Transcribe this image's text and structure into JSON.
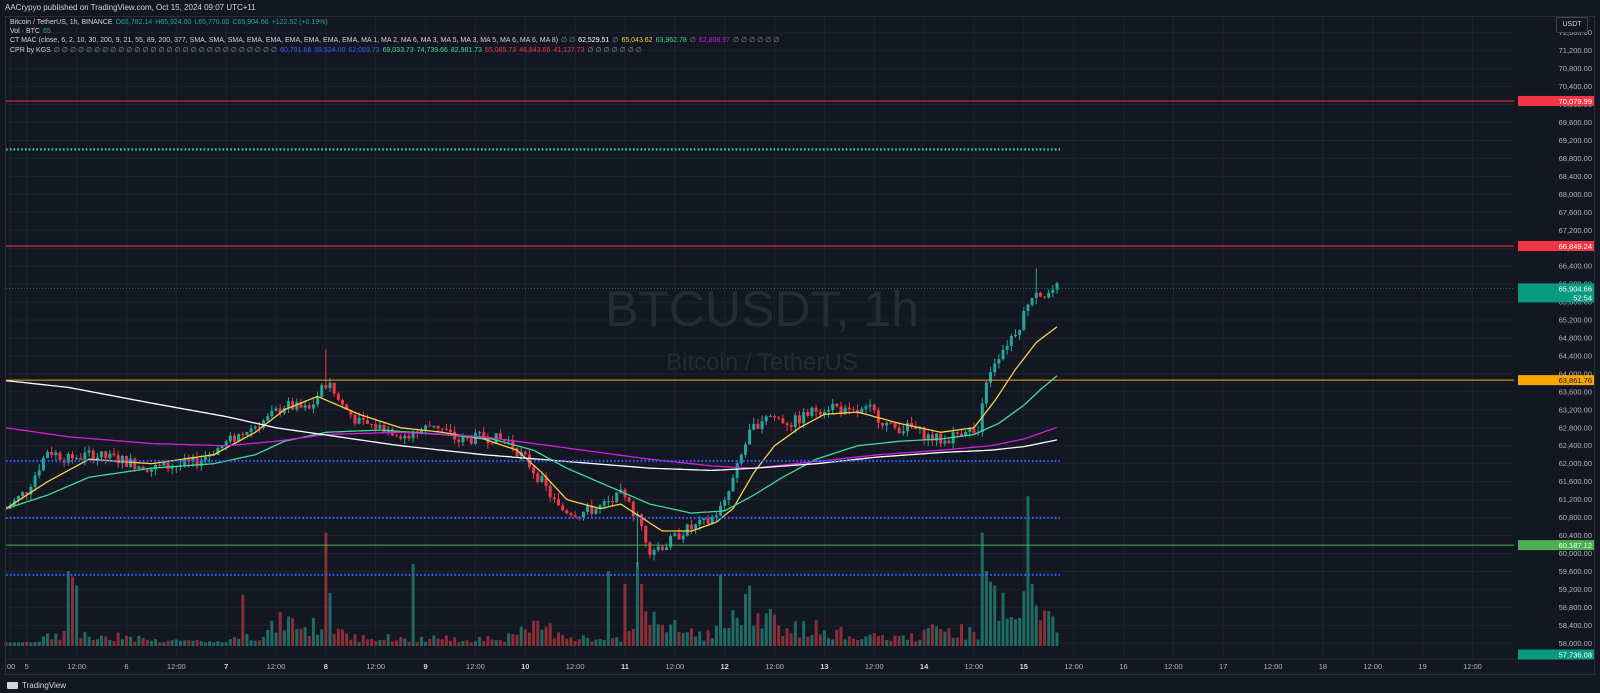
{
  "header": {
    "published": "AACrypyo published on TradingView.com, Oct 15, 2024 09:07 UTC+11"
  },
  "legend": {
    "symbol_line": [
      {
        "text": "Bitcoin / TetherUS, 1h, BINANCE",
        "color": "#d1d4dc"
      },
      {
        "text": "O65,782.14",
        "color": "#26a69a"
      },
      {
        "text": "H65,924.00",
        "color": "#26a69a"
      },
      {
        "text": "L65,770.00",
        "color": "#26a69a"
      },
      {
        "text": "C65,904.66",
        "color": "#26a69a"
      },
      {
        "text": "+122.52 (+0.19%)",
        "color": "#26a69a"
      }
    ],
    "vol_line": [
      {
        "text": "Vol · BTC",
        "color": "#d1d4dc"
      },
      {
        "text": "65",
        "color": "#26a69a"
      }
    ],
    "mac_line": [
      {
        "text": "CT MAC (close, 6, 2, 10, 30, 200, 9, 21, 55, 89, 200, 377, SMA, SMA, SMA, EMA, EMA, EMA, EMA, EMA, EMA, MA 1, MA 2, MA 6, MA 3, MA 5, MA 3, MA 5, MA 6, MA 6, MA 8)",
        "color": "#d1d4dc"
      },
      {
        "text": "∅ ∅",
        "color": "#8c909c"
      },
      {
        "text": "62,529.51",
        "color": "#ffffff"
      },
      {
        "text": "∅",
        "color": "#8c909c"
      },
      {
        "text": "65,043.62",
        "color": "#f7d046"
      },
      {
        "text": "63,962.78",
        "color": "#3ddc97"
      },
      {
        "text": "∅",
        "color": "#8c909c"
      },
      {
        "text": "62,808.97",
        "color": "#d21fdb"
      },
      {
        "text": "∅ ∅ ∅ ∅ ∅ ∅",
        "color": "#8c909c"
      }
    ],
    "cpr_line": [
      {
        "text": "CPR by KGS",
        "color": "#d1d4dc"
      },
      {
        "text": "∅ ∅ ∅ ∅ ∅ ∅ ∅ ∅ ∅ ∅ ∅ ∅ ∅ ∅ ∅ ∅ ∅ ∅ ∅ ∅ ∅ ∅ ∅ ∅ ∅ ∅ ∅ ∅",
        "color": "#8c909c"
      },
      {
        "text": "60,791.66",
        "color": "#2962ff"
      },
      {
        "text": "59,524.00",
        "color": "#2962ff"
      },
      {
        "text": "62,059.73",
        "color": "#2962ff"
      },
      {
        "text": "69,033.73",
        "color": "#3ddc97"
      },
      {
        "text": "74,739.66",
        "color": "#3ddc97"
      },
      {
        "text": "82,981.73",
        "color": "#3ddc97"
      },
      {
        "text": "55,085.73",
        "color": "#f23645"
      },
      {
        "text": "46,843.66",
        "color": "#f23645"
      },
      {
        "text": "41,137.73",
        "color": "#f23645"
      },
      {
        "text": "∅ ∅ ∅ ∅ ∅ ∅ ∅",
        "color": "#8c909c"
      }
    ]
  },
  "currency_button": "USDT",
  "footer": {
    "brand": "TradingView"
  },
  "chart_data": {
    "type": "candlestick",
    "symbol_watermark": "BTCUSDT, 1h",
    "name_watermark": "Bitcoin / TetherUS",
    "y_axis": {
      "ticks": [
        58000,
        58400,
        58800,
        59200,
        59600,
        60000,
        60400,
        60800,
        61200,
        61600,
        62000,
        62400,
        62800,
        63200,
        63600,
        64000,
        64400,
        64800,
        65200,
        65600,
        66000,
        66400,
        66800,
        67200,
        67600,
        68000,
        68400,
        68800,
        69200,
        69600,
        70000,
        70400,
        70800,
        71200,
        71600
      ],
      "tick_labels": [
        "58,000.00",
        "58,400.00",
        "58,800.00",
        "59,200.00",
        "59,600.00",
        "60,000.00",
        "60,400.00",
        "60,800.00",
        "61,200.00",
        "61,600.00",
        "62,000.00",
        "62,400.00",
        "62,800.00",
        "63,200.00",
        "63,600.00",
        "64,000.00",
        "64,400.00",
        "64,800.00",
        "65,200.00",
        "65,600.00",
        "66,000.00",
        "66,400.00",
        "66,800.00",
        "67,200.00",
        "67,600.00",
        "68,000.00",
        "68,400.00",
        "68,800.00",
        "69,200.00",
        "69,600.00",
        "70,000.00",
        "70,400.00",
        "70,800.00",
        "71,200.00",
        "71,600.00"
      ],
      "range": [
        57650,
        71950
      ]
    },
    "x_axis": {
      "labels": [
        {
          "t": -4,
          "label": ":00"
        },
        {
          "t": 0,
          "label": "5"
        },
        {
          "t": 12,
          "label": "12:00"
        },
        {
          "t": 24,
          "label": "6"
        },
        {
          "t": 36,
          "label": "12:00"
        },
        {
          "t": 48,
          "label": "7"
        },
        {
          "t": 60,
          "label": "12:00"
        },
        {
          "t": 72,
          "label": "8"
        },
        {
          "t": 84,
          "label": "12:00"
        },
        {
          "t": 96,
          "label": "9"
        },
        {
          "t": 108,
          "label": "12:00"
        },
        {
          "t": 120,
          "label": "10"
        },
        {
          "t": 132,
          "label": "12:00"
        },
        {
          "t": 144,
          "label": "11"
        },
        {
          "t": 156,
          "label": "12:00"
        },
        {
          "t": 168,
          "label": "12"
        },
        {
          "t": 180,
          "label": "12:00"
        },
        {
          "t": 192,
          "label": "13"
        },
        {
          "t": 204,
          "label": "12:00"
        },
        {
          "t": 216,
          "label": "14"
        },
        {
          "t": 228,
          "label": "12:00"
        },
        {
          "t": 240,
          "label": "15"
        },
        {
          "t": 252,
          "label": "12:00"
        },
        {
          "t": 264,
          "label": "16"
        },
        {
          "t": 276,
          "label": "12:00"
        },
        {
          "t": 288,
          "label": "17"
        },
        {
          "t": 300,
          "label": "12:00"
        },
        {
          "t": 312,
          "label": "18"
        },
        {
          "t": 324,
          "label": "12:00"
        },
        {
          "t": 336,
          "label": "19"
        },
        {
          "t": 348,
          "label": "12:00"
        }
      ],
      "range": [
        -5,
        358
      ],
      "highlight": [
        "7",
        "8",
        "9",
        "10",
        "11",
        "12",
        "13",
        "14",
        "15"
      ]
    },
    "anchors": [
      [
        -5,
        61000,
        58050
      ],
      [
        0,
        61400,
        58100
      ],
      [
        5,
        62300,
        58200
      ],
      [
        10,
        62100,
        58300
      ],
      [
        15,
        62200,
        58200
      ],
      [
        22,
        62100,
        58250
      ],
      [
        30,
        61900,
        58150
      ],
      [
        40,
        62000,
        58150
      ],
      [
        47,
        62400,
        58100
      ],
      [
        52,
        62700,
        58200
      ],
      [
        58,
        63000,
        58300
      ],
      [
        62,
        63300,
        58500
      ],
      [
        68,
        63200,
        58350
      ],
      [
        72,
        63800,
        58500
      ],
      [
        76,
        63300,
        58300
      ],
      [
        80,
        62900,
        58200
      ],
      [
        86,
        62800,
        58200
      ],
      [
        92,
        62600,
        58150
      ],
      [
        98,
        62900,
        58200
      ],
      [
        104,
        62500,
        58150
      ],
      [
        110,
        62600,
        58200
      ],
      [
        116,
        62500,
        58200
      ],
      [
        120,
        62100,
        58300
      ],
      [
        124,
        61600,
        58400
      ],
      [
        128,
        61000,
        58300
      ],
      [
        133,
        60900,
        58200
      ],
      [
        137,
        61000,
        58150
      ],
      [
        140,
        61100,
        58150
      ],
      [
        143,
        61300,
        58200
      ],
      [
        147,
        60800,
        58300
      ],
      [
        150,
        60100,
        58700
      ],
      [
        154,
        60200,
        58400
      ],
      [
        158,
        60500,
        58300
      ],
      [
        164,
        60700,
        58250
      ],
      [
        168,
        61100,
        58400
      ],
      [
        171,
        61900,
        58600
      ],
      [
        174,
        62700,
        58700
      ],
      [
        178,
        63100,
        58600
      ],
      [
        184,
        62900,
        58350
      ],
      [
        190,
        63200,
        58350
      ],
      [
        194,
        63300,
        58300
      ],
      [
        198,
        63100,
        58250
      ],
      [
        203,
        63200,
        58200
      ],
      [
        208,
        62800,
        58200
      ],
      [
        213,
        62800,
        58200
      ],
      [
        217,
        62600,
        58300
      ],
      [
        221,
        62500,
        58350
      ],
      [
        226,
        62800,
        58300
      ],
      [
        229,
        62600,
        58300
      ],
      [
        231,
        63900,
        59200
      ],
      [
        233,
        64300,
        58900
      ],
      [
        236,
        64700,
        58600
      ],
      [
        239,
        65100,
        58500
      ],
      [
        241,
        65600,
        58800
      ],
      [
        243,
        65900,
        59000
      ],
      [
        245,
        65750,
        58500
      ],
      [
        248,
        65900,
        58400
      ]
    ],
    "spikes": {
      "31": {
        "v": 58000
      },
      "72": {
        "v": 58300
      },
      "123": {
        "v": 58300
      },
      "144": {
        "v": 59100
      },
      "147": {
        "v": 58400
      },
      "148": {
        "v": 58200
      },
      "162": {
        "v": 58300
      },
      "172": {
        "v": 58400
      },
      "230": {
        "v": 59500
      },
      "231": {
        "v": 58700
      },
      "232": {
        "v": 58900
      },
      "239": {
        "v": 59100
      },
      "241": {
        "v": 60700
      },
      "242": {
        "v": 58900
      }
    },
    "volume_peaks": {
      "10": 0.41,
      "11": 0.38,
      "12": 0.33,
      "52": 0.28,
      "72": 0.62,
      "73": 0.29,
      "93": 0.45,
      "140": 0.41,
      "144": 0.34,
      "147": 0.46,
      "148": 0.34,
      "167": 0.39,
      "174": 0.33,
      "230": 0.62,
      "231": 0.41,
      "240": 0.3,
      "241": 0.82,
      "242": 0.34
    },
    "moving_averages": [
      {
        "color": "#f7d046",
        "anchors": [
          [
            -5,
            61000
          ],
          [
            5,
            61600
          ],
          [
            15,
            62100
          ],
          [
            30,
            62000
          ],
          [
            45,
            62200
          ],
          [
            55,
            62700
          ],
          [
            62,
            63200
          ],
          [
            70,
            63500
          ],
          [
            80,
            63100
          ],
          [
            90,
            62800
          ],
          [
            100,
            62700
          ],
          [
            110,
            62550
          ],
          [
            118,
            62300
          ],
          [
            124,
            61800
          ],
          [
            130,
            61200
          ],
          [
            138,
            61000
          ],
          [
            143,
            61100
          ],
          [
            148,
            60800
          ],
          [
            153,
            60500
          ],
          [
            160,
            60500
          ],
          [
            166,
            60700
          ],
          [
            170,
            61000
          ],
          [
            175,
            61800
          ],
          [
            180,
            62400
          ],
          [
            186,
            62800
          ],
          [
            192,
            63100
          ],
          [
            200,
            63150
          ],
          [
            210,
            62900
          ],
          [
            220,
            62700
          ],
          [
            228,
            62800
          ],
          [
            233,
            63400
          ],
          [
            238,
            64100
          ],
          [
            243,
            64700
          ],
          [
            248,
            65050
          ]
        ]
      },
      {
        "color": "#3ddc97",
        "anchors": [
          [
            -5,
            61000
          ],
          [
            5,
            61300
          ],
          [
            15,
            61700
          ],
          [
            30,
            61900
          ],
          [
            45,
            62000
          ],
          [
            55,
            62200
          ],
          [
            62,
            62500
          ],
          [
            72,
            62700
          ],
          [
            85,
            62750
          ],
          [
            100,
            62650
          ],
          [
            112,
            62550
          ],
          [
            122,
            62300
          ],
          [
            130,
            61900
          ],
          [
            140,
            61500
          ],
          [
            150,
            61100
          ],
          [
            160,
            60900
          ],
          [
            168,
            60950
          ],
          [
            175,
            61300
          ],
          [
            182,
            61700
          ],
          [
            190,
            62100
          ],
          [
            200,
            62400
          ],
          [
            210,
            62500
          ],
          [
            220,
            62550
          ],
          [
            228,
            62650
          ],
          [
            234,
            62900
          ],
          [
            240,
            63300
          ],
          [
            244,
            63650
          ],
          [
            248,
            63960
          ]
        ]
      },
      {
        "color": "#d21fdb",
        "anchors": [
          [
            -5,
            62800
          ],
          [
            10,
            62600
          ],
          [
            30,
            62450
          ],
          [
            48,
            62400
          ],
          [
            60,
            62500
          ],
          [
            72,
            62650
          ],
          [
            90,
            62700
          ],
          [
            110,
            62600
          ],
          [
            130,
            62350
          ],
          [
            150,
            62100
          ],
          [
            165,
            61950
          ],
          [
            175,
            61900
          ],
          [
            190,
            62050
          ],
          [
            205,
            62200
          ],
          [
            220,
            62300
          ],
          [
            232,
            62400
          ],
          [
            240,
            62550
          ],
          [
            248,
            62810
          ]
        ]
      },
      {
        "color": "#ffffff",
        "anchors": [
          [
            -5,
            63850
          ],
          [
            10,
            63700
          ],
          [
            30,
            63350
          ],
          [
            48,
            63050
          ],
          [
            60,
            62800
          ],
          [
            75,
            62600
          ],
          [
            90,
            62400
          ],
          [
            110,
            62200
          ],
          [
            130,
            62050
          ],
          [
            150,
            61900
          ],
          [
            165,
            61850
          ],
          [
            175,
            61900
          ],
          [
            190,
            62000
          ],
          [
            205,
            62150
          ],
          [
            220,
            62250
          ],
          [
            232,
            62300
          ],
          [
            240,
            62380
          ],
          [
            248,
            62530
          ]
        ]
      }
    ],
    "levels": [
      {
        "value": 70079.99,
        "color": "#f23645",
        "style": "solid",
        "label": "70,079.99"
      },
      {
        "value": 69000,
        "color": "#3ddc97",
        "style": "dotted",
        "label": ""
      },
      {
        "value": 66849.24,
        "color": "#f23645",
        "style": "solid",
        "label": "66,849.24"
      },
      {
        "value": 63861.76,
        "color": "#f7a600",
        "style": "solid",
        "label": "63,861.76"
      },
      {
        "value": 62059.73,
        "color": "#2962ff",
        "style": "dotted",
        "label": ""
      },
      {
        "value": 60791.66,
        "color": "#2962ff",
        "style": "dotted",
        "label": ""
      },
      {
        "value": 60187.12,
        "color": "#4caf50",
        "style": "solid",
        "label": "60,187.12"
      },
      {
        "value": 59524.0,
        "color": "#2962ff",
        "style": "dotted",
        "label": ""
      }
    ],
    "last_price": {
      "value": 65904.66,
      "label": "65,904.66",
      "countdown": "52:54",
      "color": "#089981"
    },
    "volume_label": {
      "value": 57750,
      "label": "57,736.08",
      "color": "#089981"
    },
    "colors": {
      "up": "#26a69a",
      "down": "#f23645",
      "up_volume": "#1f6b63",
      "down_volume": "#8b2f36",
      "grid": "#1e222d",
      "text": "#b2b5be"
    }
  }
}
